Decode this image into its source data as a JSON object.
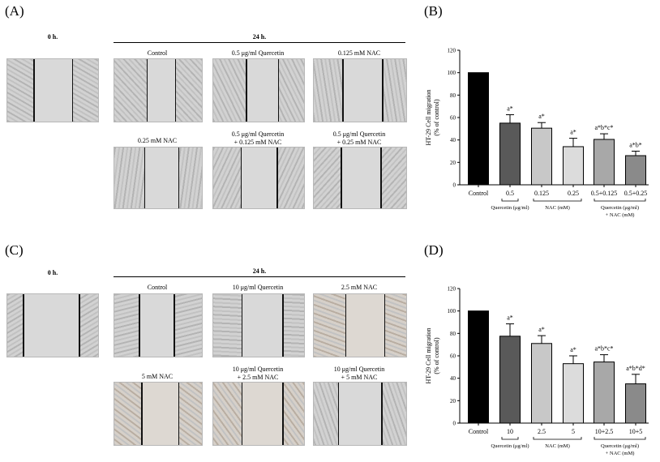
{
  "panels": {
    "A": {
      "label": "(A)",
      "time0": "0 h.",
      "time24": "24 h.",
      "conditions": [
        "Control",
        "0.5 μg/ml Quercetin",
        "0.125 mM NAC",
        "0.25 mM NAC",
        "0.5 μg/ml Quercetin",
        "0.5 μg/ml Quercetin"
      ],
      "conditions_line2": [
        "",
        "",
        "",
        "",
        "+ 0.125 mM NAC",
        "+ 0.25 mM NAC"
      ]
    },
    "C": {
      "label": "(C)",
      "time0": "0 h.",
      "time24": "24 h.",
      "conditions": [
        "Control",
        "10 μg/ml Quercetin",
        "2.5 mM NAC",
        "5 mM NAC",
        "10 μg/ml Quercetin",
        "10 μg/ml Quercetin"
      ],
      "conditions_line2": [
        "",
        "",
        "",
        "",
        "+ 2.5 mM NAC",
        "+ 5 mM NAC"
      ]
    }
  },
  "chart_data": [
    {
      "panel": "(B)",
      "type": "bar",
      "ylabel_line1": "HT-29 Cell migration",
      "ylabel_line2": "(% of control)",
      "ylim": [
        0,
        120
      ],
      "yticks": [
        "0",
        "20",
        "40",
        "60",
        "80",
        "100",
        "120"
      ],
      "categories": [
        "Control",
        "0.5",
        "0.125",
        "0.25",
        "0.5+0.125",
        "0.5+0.25"
      ],
      "values": [
        100,
        55,
        50.5,
        34,
        40.5,
        26
      ],
      "errors": [
        0,
        7.5,
        5,
        7.5,
        5,
        4
      ],
      "annotations": [
        "",
        "a*",
        "a*",
        "a*",
        "a*b*c*",
        "a*b*"
      ],
      "colors": [
        "#000000",
        "#595959",
        "#c8c8c8",
        "#dcdcdc",
        "#a8a8a8",
        "#8a8a8a"
      ],
      "groups": [
        "Quercetin (μg/ml)",
        "NAC (mM)",
        "Quercetin (μg/ml)",
        "+ NAC (mM)"
      ]
    },
    {
      "panel": "(D)",
      "type": "bar",
      "ylabel_line1": "HT-29 Cell migration",
      "ylabel_line2": "(% of control)",
      "ylim": [
        0,
        120
      ],
      "yticks": [
        "0",
        "20",
        "40",
        "60",
        "80",
        "100",
        "120"
      ],
      "categories": [
        "Control",
        "10",
        "2.5",
        "5",
        "10+2.5",
        "10+5"
      ],
      "values": [
        100,
        77.5,
        71,
        53,
        54.5,
        35
      ],
      "errors": [
        0,
        11,
        7,
        7,
        6.5,
        8.5
      ],
      "annotations": [
        "",
        "a*",
        "a*",
        "a*",
        "a*b*c*",
        "a*b*d*"
      ],
      "colors": [
        "#000000",
        "#595959",
        "#c8c8c8",
        "#dcdcdc",
        "#a8a8a8",
        "#8a8a8a"
      ],
      "groups": [
        "Quercetin (μg/ml)",
        "NAC (mM)",
        "Quercetin (μg/ml)",
        "+ NAC (mM)"
      ]
    }
  ]
}
